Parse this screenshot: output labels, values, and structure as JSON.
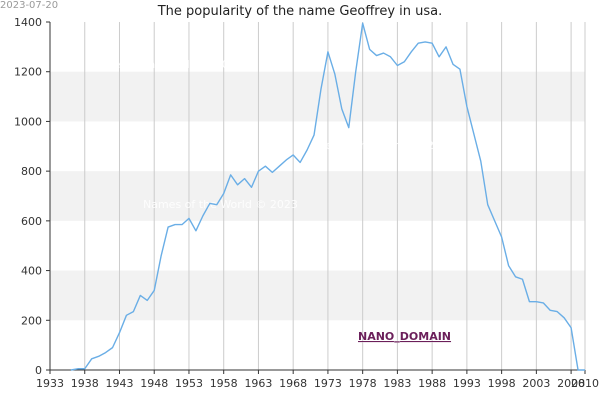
{
  "header": {
    "date_stamp": "2023-07-20",
    "title": "The popularity of the name Geoffrey in usa."
  },
  "watermarks": [
    "Names of the World © 2023",
    "Names of the World © 2023",
    "Names of the World © 2023"
  ],
  "brand_label": "NANO_DOMAIN",
  "colors": {
    "line": "#6aaee6",
    "band": "#f2f2f2",
    "grid": "#cccccc",
    "axis": "#333333"
  },
  "chart_data": {
    "type": "line",
    "title": "The popularity of the name Geoffrey in usa.",
    "xlabel": "",
    "ylabel": "",
    "xlim": [
      1933,
      2010
    ],
    "ylim": [
      0,
      1400
    ],
    "xticks": [
      1933,
      1938,
      1943,
      1948,
      1953,
      1958,
      1963,
      1968,
      1973,
      1978,
      1983,
      1988,
      1993,
      1998,
      2003,
      2008,
      2010
    ],
    "yticks": [
      0,
      200,
      400,
      600,
      800,
      1000,
      1200,
      1400
    ],
    "grid": true,
    "legend": "none",
    "series": [
      {
        "x": [
          1936,
          1937,
          1938,
          1939,
          1940,
          1941,
          1942,
          1943,
          1944,
          1945,
          1946,
          1947,
          1948,
          1949,
          1950,
          1951,
          1952,
          1953,
          1954,
          1955,
          1956,
          1957,
          1958,
          1959,
          1960,
          1961,
          1962,
          1963,
          1964,
          1965,
          1966,
          1967,
          1968,
          1969,
          1970,
          1971,
          1972,
          1973,
          1974,
          1975,
          1976,
          1977,
          1978,
          1979,
          1980,
          1981,
          1982,
          1983,
          1984,
          1985,
          1986,
          1987,
          1988,
          1989,
          1990,
          1991,
          1992,
          1993,
          1994,
          1995,
          1996,
          1997,
          1998,
          1999,
          2000,
          2001,
          2002,
          2003,
          2004,
          2005,
          2006,
          2007,
          2008,
          2009,
          2010
        ],
        "values": [
          0,
          5,
          5,
          45,
          55,
          70,
          90,
          150,
          220,
          235,
          300,
          280,
          320,
          460,
          575,
          585,
          585,
          610,
          560,
          620,
          670,
          665,
          710,
          785,
          745,
          770,
          735,
          800,
          820,
          795,
          820,
          845,
          865,
          835,
          885,
          945,
          1130,
          1280,
          1190,
          1050,
          975,
          1200,
          1395,
          1290,
          1265,
          1275,
          1260,
          1225,
          1240,
          1280,
          1315,
          1320,
          1315,
          1260,
          1300,
          1230,
          1210,
          1060,
          950,
          840,
          665,
          600,
          535,
          420,
          375,
          365,
          275,
          275,
          270,
          240,
          235,
          210,
          170,
          0,
          0
        ]
      }
    ]
  }
}
